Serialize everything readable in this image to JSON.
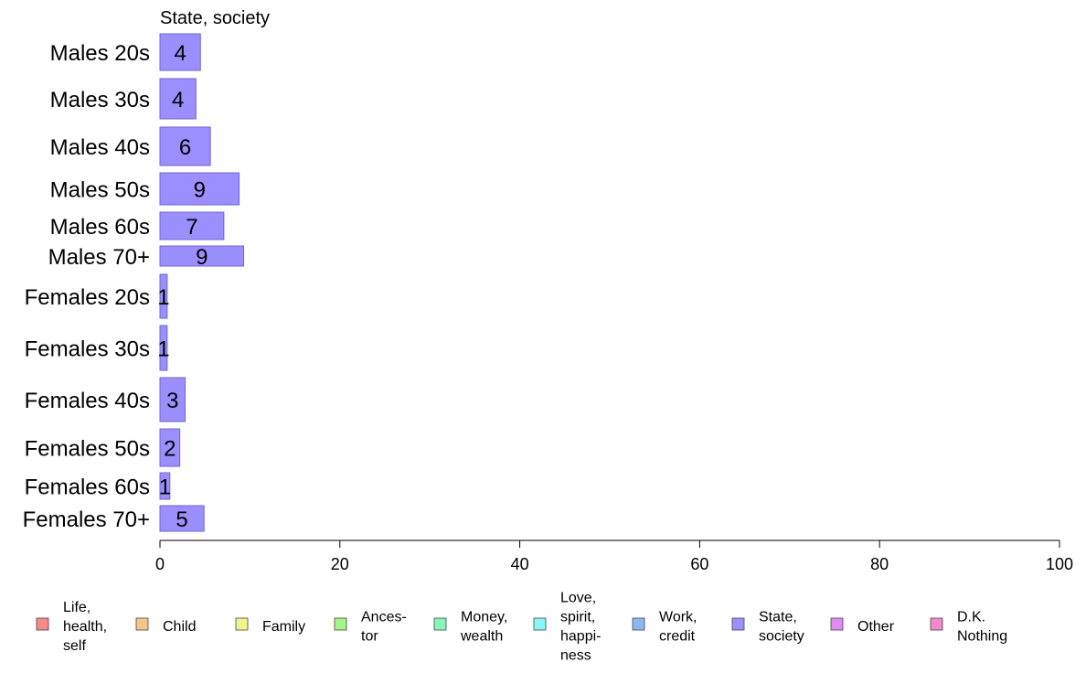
{
  "chart_data": {
    "type": "bar",
    "orientation": "horizontal",
    "title": "State, society",
    "xlabel": "",
    "ylabel": "",
    "xlim": [
      0,
      100
    ],
    "x_ticks": [
      0,
      20,
      40,
      60,
      80,
      100
    ],
    "bar_color": "#9b8fff",
    "bar_border": "#6f66cc",
    "series": [
      {
        "name": "State, society",
        "color": "#9b8fff",
        "data": [
          {
            "category": "Males 20s",
            "value": 4.5,
            "label": "4"
          },
          {
            "category": "Males 30s",
            "value": 4.0,
            "label": "4"
          },
          {
            "category": "Males 40s",
            "value": 5.6,
            "label": "6"
          },
          {
            "category": "Males 50s",
            "value": 8.8,
            "label": "9"
          },
          {
            "category": "Males 60s",
            "value": 7.1,
            "label": "7"
          },
          {
            "category": "Males 70+",
            "value": 9.3,
            "label": "9"
          },
          {
            "category": "Females 20s",
            "value": 0.8,
            "label": "1"
          },
          {
            "category": "Females 30s",
            "value": 0.8,
            "label": "1"
          },
          {
            "category": "Females 40s",
            "value": 2.8,
            "label": "3"
          },
          {
            "category": "Females 50s",
            "value": 2.2,
            "label": "2"
          },
          {
            "category": "Females 60s",
            "value": 1.1,
            "label": "1"
          },
          {
            "category": "Females 70+",
            "value": 4.9,
            "label": "5"
          }
        ]
      }
    ],
    "legend": {
      "placement": "bottom",
      "items": [
        {
          "lines": [
            "Life,",
            "health,",
            "self"
          ],
          "color": "#f48a8a"
        },
        {
          "lines": [
            "Child"
          ],
          "color": "#f7c48a"
        },
        {
          "lines": [
            "Family"
          ],
          "color": "#eef58a"
        },
        {
          "lines": [
            "Ances-",
            "tor"
          ],
          "color": "#a6f58a"
        },
        {
          "lines": [
            "Money,",
            "wealth"
          ],
          "color": "#8af5b8"
        },
        {
          "lines": [
            "Love,",
            "spirit,",
            "happi-",
            "ness"
          ],
          "color": "#8af5f5"
        },
        {
          "lines": [
            "Work,",
            "credit"
          ],
          "color": "#8ab8f5"
        },
        {
          "lines": [
            "State,",
            "society"
          ],
          "color": "#9b8fff"
        },
        {
          "lines": [
            "Other"
          ],
          "color": "#e08af5"
        },
        {
          "lines": [
            "D.K.",
            "Nothing"
          ],
          "color": "#f58ad0"
        }
      ]
    }
  }
}
